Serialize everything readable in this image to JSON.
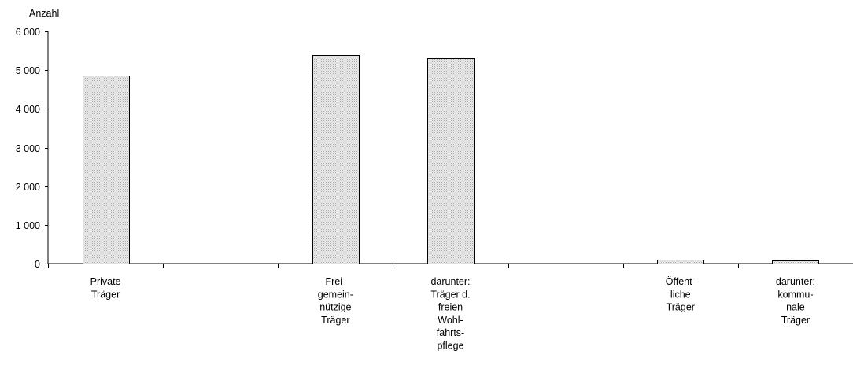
{
  "chart_data": {
    "type": "bar",
    "ylabel": "Anzahl",
    "ylim": [
      0,
      6000
    ],
    "yticks": [
      {
        "value": 0,
        "label": "0"
      },
      {
        "value": 1000,
        "label": "1 000"
      },
      {
        "value": 2000,
        "label": "2 000"
      },
      {
        "value": 3000,
        "label": "3 000"
      },
      {
        "value": 4000,
        "label": "4 000"
      },
      {
        "value": 5000,
        "label": "5 000"
      },
      {
        "value": 6000,
        "label": "6 000"
      }
    ],
    "categories": [
      {
        "label": [
          "Private",
          "Träger"
        ],
        "value": 4870
      },
      {
        "label": [],
        "value": null
      },
      {
        "label": [
          "Frei-",
          "gemein-",
          "nützige",
          "Träger"
        ],
        "value": 5390
      },
      {
        "label": [
          "darunter:",
          "Träger d.",
          "freien",
          "Wohl-",
          "fahrts-",
          "pflege"
        ],
        "value": 5310
      },
      {
        "label": [],
        "value": null
      },
      {
        "label": [
          "Öffent-",
          "liche",
          "Träger"
        ],
        "value": 95
      },
      {
        "label": [
          "darunter:",
          "kommu-",
          "nale",
          "Träger"
        ],
        "value": 90
      }
    ],
    "grid": false,
    "legend": "none",
    "colors": {
      "bar_fill": "#d9d9d9",
      "bar_stroke": "#000000",
      "axis": "#000000"
    }
  }
}
